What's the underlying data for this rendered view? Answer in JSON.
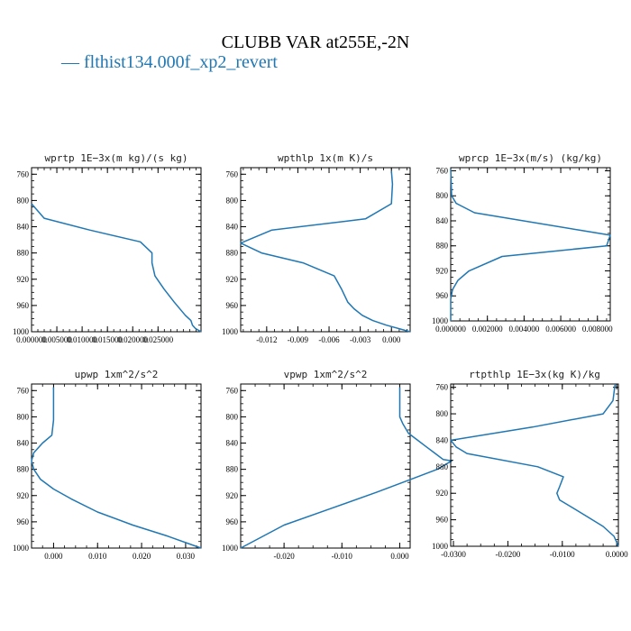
{
  "title": "CLUBB VAR at255E,-2N",
  "legend": {
    "dash": "—",
    "label": "flthist134.000f_xp2_revert",
    "color": "#1f77b4"
  },
  "chart_data": [
    {
      "type": "line",
      "title": "wprtp  1E−3x(m kg)/(s kg)",
      "xlim": [
        0.0,
        0.0335
      ],
      "ylim": [
        1000,
        750
      ],
      "y_ticks": [
        760,
        800,
        840,
        880,
        920,
        960,
        1000
      ],
      "x_ticks": [
        0.0,
        0.005,
        0.01,
        0.015,
        0.02,
        0.025
      ],
      "x_tick_labels": [
        "0.000000",
        "0.005000",
        "0.010000",
        "0.015000",
        "0.020000",
        "0.025000"
      ],
      "series": [
        {
          "color": "#1f77b4",
          "x": [
            0.0,
            0.0025,
            0.0115,
            0.0215,
            0.0238,
            0.0238,
            0.0244,
            0.0262,
            0.0282,
            0.0304,
            0.0315,
            0.0318,
            0.0324,
            0.0335
          ],
          "y": [
            805,
            827,
            845,
            863,
            880,
            895,
            915,
            935,
            955,
            975,
            983,
            990,
            995,
            1000
          ]
        }
      ]
    },
    {
      "type": "line",
      "title": "wpthlp  1x(m K)/s",
      "xlim": [
        -0.0145,
        0.0018
      ],
      "ylim": [
        1000,
        750
      ],
      "y_ticks": [
        760,
        800,
        840,
        880,
        920,
        960,
        1000
      ],
      "x_ticks": [
        -0.012,
        -0.009,
        -0.006,
        -0.003,
        0.0
      ],
      "x_tick_labels": [
        "-0.012",
        "-0.009",
        "-0.006",
        "-0.003",
        "0.000"
      ],
      "series": [
        {
          "color": "#1f77b4",
          "x": [
            0.0,
            0.0001,
            0.0,
            -0.0025,
            -0.0115,
            -0.0145,
            -0.0125,
            -0.0085,
            -0.0055,
            -0.0048,
            -0.0042,
            -0.0036,
            -0.0028,
            -0.0018,
            -0.0005,
            0.0018
          ],
          "y": [
            755,
            775,
            805,
            828,
            845,
            865,
            880,
            895,
            915,
            935,
            955,
            965,
            975,
            983,
            990,
            1000
          ]
        }
      ]
    },
    {
      "type": "line",
      "title": "wprcp  1E−3x(m/s) (kg/kg)",
      "xlim": [
        0.0,
        0.0087
      ],
      "ylim": [
        1000,
        755
      ],
      "y_ticks": [
        760,
        800,
        840,
        880,
        920,
        960,
        1000
      ],
      "x_ticks": [
        0.0,
        0.002,
        0.004,
        0.006,
        0.008
      ],
      "x_tick_labels": [
        "0.000000",
        "0.002000",
        "0.004000",
        "0.006000",
        "0.008000"
      ],
      "series": [
        {
          "color": "#1f77b4",
          "x": [
            0.0,
            5e-05,
            0.0003,
            0.0013,
            0.0087,
            0.0085,
            0.0028,
            0.001,
            0.0004,
            0.0001,
            0.0,
            0.0
          ],
          "y": [
            757,
            800,
            812,
            827,
            863,
            880,
            897,
            920,
            935,
            950,
            965,
            1000
          ]
        }
      ]
    },
    {
      "type": "line",
      "title": "upwp  1xm^2/s^2",
      "xlim": [
        -0.005,
        0.0335
      ],
      "ylim": [
        1000,
        750
      ],
      "y_ticks": [
        760,
        800,
        840,
        880,
        920,
        960,
        1000
      ],
      "x_ticks": [
        0.0,
        0.01,
        0.02,
        0.03
      ],
      "x_tick_labels": [
        "0.000",
        "0.010",
        "0.020",
        "0.030"
      ],
      "series": [
        {
          "color": "#1f77b4",
          "x": [
            0.0,
            0.0,
            -0.0004,
            -0.0025,
            -0.0045,
            -0.005,
            -0.0045,
            -0.003,
            0.0,
            0.004,
            0.01,
            0.018,
            0.026,
            0.0335
          ],
          "y": [
            755,
            805,
            828,
            840,
            855,
            867,
            880,
            895,
            910,
            925,
            945,
            965,
            982,
            1000
          ]
        }
      ]
    },
    {
      "type": "line",
      "title": "vpwp  1xm^2/s^2",
      "xlim": [
        -0.0275,
        0.0018
      ],
      "ylim": [
        1000,
        750
      ],
      "y_ticks": [
        760,
        800,
        840,
        880,
        920,
        960,
        1000
      ],
      "x_ticks": [
        -0.02,
        -0.01,
        0.0
      ],
      "x_tick_labels": [
        "-0.020",
        "-0.010",
        "0.000"
      ],
      "series": [
        {
          "color": "#1f77b4",
          "x": [
            0.0,
            0.0,
            0.0005,
            0.0015,
            0.003,
            0.0045,
            0.006,
            0.0075,
            0.009,
            0.0065,
            0.002,
            -0.004,
            -0.012,
            -0.02,
            -0.0275
          ],
          "y": [
            755,
            800,
            810,
            825,
            835,
            845,
            855,
            865,
            867,
            880,
            895,
            915,
            940,
            965,
            1000
          ]
        }
      ]
    },
    {
      "type": "line",
      "title": "rtpthlp  1E−3x(kg K)/kg",
      "xlim": [
        -0.0305,
        0.0003
      ],
      "ylim": [
        1000,
        755
      ],
      "y_ticks": [
        760,
        800,
        840,
        880,
        920,
        960,
        1000
      ],
      "x_ticks": [
        -0.03,
        -0.02,
        -0.01,
        0.0
      ],
      "x_tick_labels": [
        "-0.0300",
        "-0.0200",
        "-0.0100",
        "0.0000"
      ],
      "series": [
        {
          "color": "#1f77b4",
          "x": [
            -0.0003,
            -0.0007,
            -0.0025,
            -0.0155,
            -0.0305,
            -0.0295,
            -0.0275,
            -0.0145,
            -0.0098,
            -0.0105,
            -0.011,
            -0.0105,
            -0.0085,
            -0.0055,
            -0.0025,
            -0.0005,
            0.0003
          ],
          "y": [
            755,
            780,
            800,
            820,
            840,
            850,
            860,
            880,
            895,
            910,
            920,
            930,
            940,
            955,
            970,
            985,
            1000
          ]
        }
      ]
    }
  ]
}
